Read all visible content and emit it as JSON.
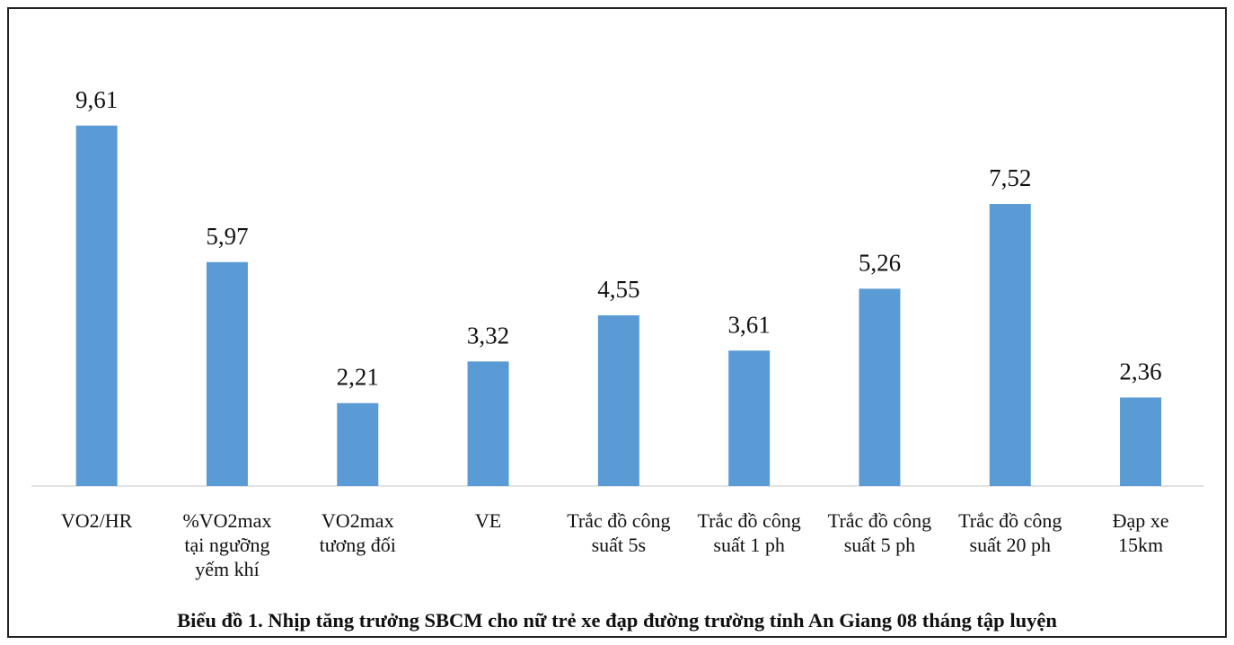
{
  "chart_data": {
    "type": "bar",
    "title": "Biểu đồ 1. Nhịp tăng trưởng SBCM cho nữ trẻ xe đạp đường trường tỉnh An Giang 08 tháng tập luyện",
    "categories": [
      "VO2/HR",
      "%VO2max tại ngưỡng yếm khí",
      "VO2max tương đối",
      "VE",
      "Trắc đồ công suất 5s",
      "Trắc đồ công suất 1 ph",
      "Trắc đồ công suất 5 ph",
      "Trắc đồ công suất 20 ph",
      "Đạp xe 15km"
    ],
    "values": [
      9.61,
      5.97,
      2.21,
      3.32,
      4.55,
      3.61,
      5.26,
      7.52,
      2.36
    ],
    "value_labels": [
      "9,61",
      "5,97",
      "2,21",
      "3,32",
      "4,55",
      "3,61",
      "5,26",
      "7,52",
      "2,36"
    ],
    "color": "#5b9bd5"
  }
}
